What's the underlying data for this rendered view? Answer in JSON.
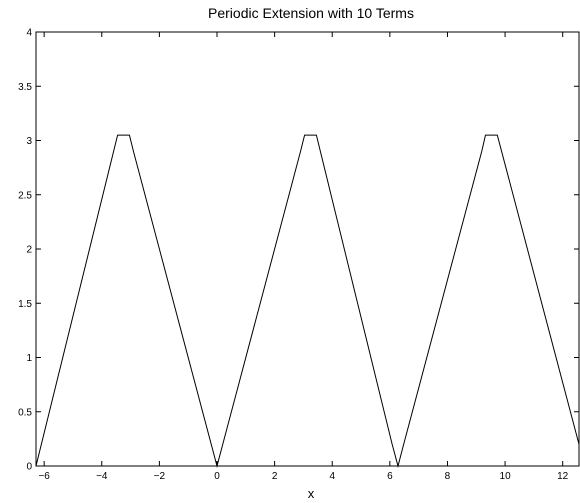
{
  "chart_data": {
    "type": "line",
    "title": "Periodic Extension with 10 Terms",
    "xlabel": "x",
    "ylabel": "",
    "xlim": [
      -6.283,
      12.566
    ],
    "ylim": [
      0,
      4
    ],
    "x_ticks": [
      -6,
      -4,
      -2,
      0,
      2,
      4,
      6,
      8,
      10,
      12
    ],
    "x_tick_labels": [
      "−6",
      "−4",
      "−2",
      "0",
      "2",
      "4",
      "6",
      "8",
      "10",
      "12"
    ],
    "y_ticks": [
      0,
      0.5,
      1,
      1.5,
      2,
      2.5,
      3,
      3.5,
      4
    ],
    "y_tick_labels": [
      "0",
      "0.5",
      "1",
      "1.5",
      "2",
      "2.5",
      "3",
      "3.5",
      "4"
    ],
    "grid": false,
    "series": [
      {
        "x": [
          -6.283,
          -3.45,
          -3.04,
          -2.9,
          0,
          0.2,
          2.9,
          3.04,
          3.45,
          6.08,
          6.283,
          6.48,
          9.19,
          9.32,
          9.73,
          12.566
        ],
        "y": [
          0,
          3.05,
          3.05,
          2.9,
          0,
          0.2,
          2.9,
          3.05,
          3.05,
          0.2,
          0,
          0.2,
          2.9,
          3.05,
          3.05,
          0.2
        ]
      }
    ]
  }
}
